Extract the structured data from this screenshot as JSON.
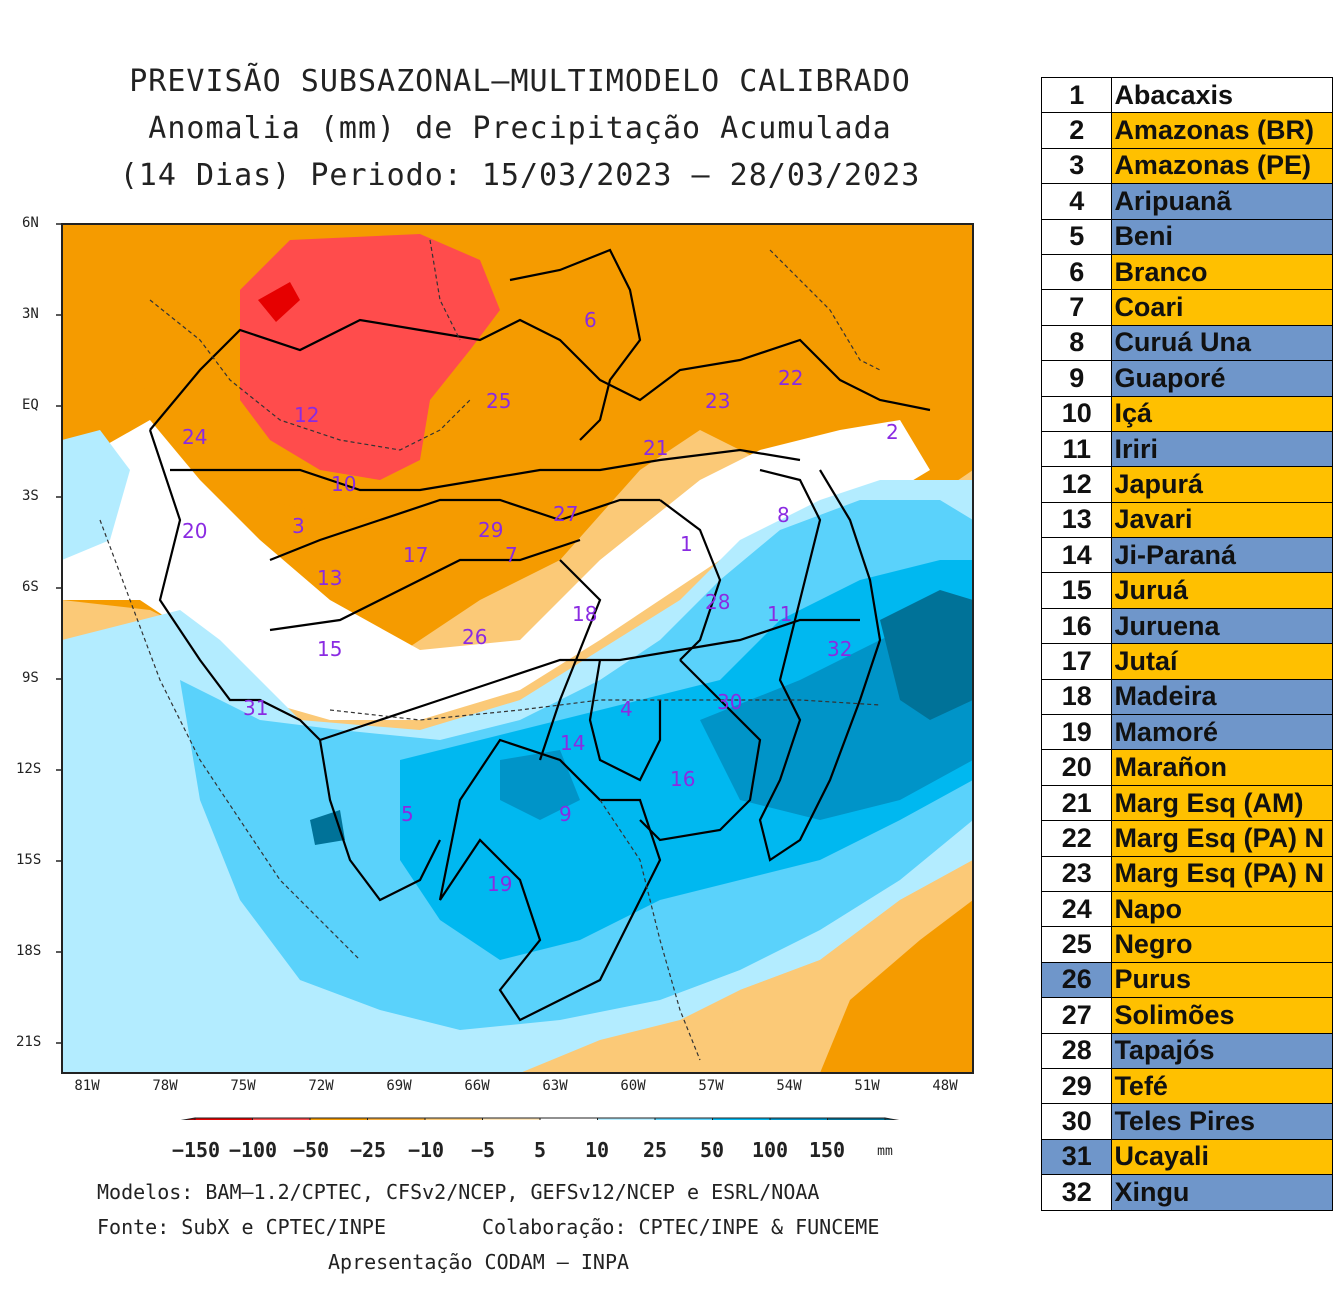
{
  "title_lines": [
    "PREVISÃO SUBSAZONAL—MULTIMODELO CALIBRADO",
    "Anomalia (mm) de Precipitação Acumulada",
    "(14 Dias) Periodo: 15/03/2023 — 28/03/2023"
  ],
  "lat_labels": [
    "6N",
    "3N",
    "EQ",
    "3S",
    "6S",
    "9S",
    "12S",
    "15S",
    "18S",
    "21S"
  ],
  "lon_labels": [
    "81W",
    "78W",
    "75W",
    "72W",
    "69W",
    "66W",
    "63W",
    "60W",
    "57W",
    "54W",
    "51W",
    "48W"
  ],
  "basin_labels": [
    "1",
    "2",
    "3",
    "4",
    "5",
    "6",
    "7",
    "8",
    "9",
    "10",
    "11",
    "12",
    "13",
    "14",
    "15",
    "16",
    "17",
    "18",
    "19",
    "20",
    "21",
    "22",
    "23",
    "24",
    "25",
    "26",
    "27",
    "28",
    "29",
    "30",
    "31",
    "32"
  ],
  "colorbar": {
    "labels": [
      "−150",
      "−100",
      "−50",
      "−25",
      "−10",
      "−5",
      "5",
      "10",
      "25",
      "50",
      "100",
      "150"
    ],
    "unit": "mm",
    "colors": [
      "#b50000",
      "#e60000",
      "#ff4c4c",
      "#f59b00",
      "#f8ad3a",
      "#fbc977",
      "#fde4b8",
      "#ffffff",
      "#b3ecff",
      "#5ad2fb",
      "#00b8f0",
      "#0094c8",
      "#007298",
      "#005570"
    ]
  },
  "footer": {
    "models": "Modelos: BAM—1.2/CPTEC, CFSv2/NCEP, GEFSv12/NCEP e ESRL/NOAA",
    "source": "Fonte: SubX e CPTEC/INPE",
    "collab": "Colaboração: CPTEC/INPE & FUNCEME",
    "presentation": "Apresentação CODAM — INPA"
  },
  "legend": [
    {
      "n": "1",
      "name": "Abacaxis",
      "color": "white",
      "numcolor": "white"
    },
    {
      "n": "2",
      "name": "Amazonas (BR)",
      "color": "orange",
      "numcolor": "white"
    },
    {
      "n": "3",
      "name": "Amazonas (PE)",
      "color": "orange",
      "numcolor": "white"
    },
    {
      "n": "4",
      "name": "Aripuanã",
      "color": "blue",
      "numcolor": "white"
    },
    {
      "n": "5",
      "name": "Beni",
      "color": "blue",
      "numcolor": "white"
    },
    {
      "n": "6",
      "name": "Branco",
      "color": "orange",
      "numcolor": "white"
    },
    {
      "n": "7",
      "name": "Coari",
      "color": "orange",
      "numcolor": "white"
    },
    {
      "n": "8",
      "name": "Curuá Una",
      "color": "blue",
      "numcolor": "white"
    },
    {
      "n": "9",
      "name": "Guaporé",
      "color": "blue",
      "numcolor": "white"
    },
    {
      "n": "10",
      "name": "Içá",
      "color": "orange",
      "numcolor": "white"
    },
    {
      "n": "11",
      "name": "Iriri",
      "color": "blue",
      "numcolor": "white"
    },
    {
      "n": "12",
      "name": "Japurá",
      "color": "orange",
      "numcolor": "white"
    },
    {
      "n": "13",
      "name": "Javari",
      "color": "orange",
      "numcolor": "white"
    },
    {
      "n": "14",
      "name": "Ji-Paraná",
      "color": "blue",
      "numcolor": "white"
    },
    {
      "n": "15",
      "name": "Juruá",
      "color": "orange",
      "numcolor": "white"
    },
    {
      "n": "16",
      "name": "Juruena",
      "color": "blue",
      "numcolor": "white"
    },
    {
      "n": "17",
      "name": "Jutaí",
      "color": "orange",
      "numcolor": "white"
    },
    {
      "n": "18",
      "name": "Madeira",
      "color": "blue",
      "numcolor": "white"
    },
    {
      "n": "19",
      "name": "Mamoré",
      "color": "blue",
      "numcolor": "white"
    },
    {
      "n": "20",
      "name": "Marañon",
      "color": "orange",
      "numcolor": "white"
    },
    {
      "n": "21",
      "name": "Marg Esq (AM)",
      "color": "orange",
      "numcolor": "white"
    },
    {
      "n": "22",
      "name": "Marg Esq (PA) N",
      "color": "orange",
      "numcolor": "white"
    },
    {
      "n": "23",
      "name": "Marg Esq (PA) N",
      "color": "orange",
      "numcolor": "white"
    },
    {
      "n": "24",
      "name": "Napo",
      "color": "orange",
      "numcolor": "white"
    },
    {
      "n": "25",
      "name": "Negro",
      "color": "orange",
      "numcolor": "white"
    },
    {
      "n": "26",
      "name": "Purus",
      "color": "orange",
      "numcolor": "blue"
    },
    {
      "n": "27",
      "name": "Solimões",
      "color": "orange",
      "numcolor": "white"
    },
    {
      "n": "28",
      "name": "Tapajós",
      "color": "blue",
      "numcolor": "white"
    },
    {
      "n": "29",
      "name": "Tefé",
      "color": "orange",
      "numcolor": "white"
    },
    {
      "n": "30",
      "name": "Teles Pires",
      "color": "blue",
      "numcolor": "white"
    },
    {
      "n": "31",
      "name": "Ucayali",
      "color": "orange",
      "numcolor": "blue"
    },
    {
      "n": "32",
      "name": "Xingu",
      "color": "blue",
      "numcolor": "white"
    }
  ]
}
